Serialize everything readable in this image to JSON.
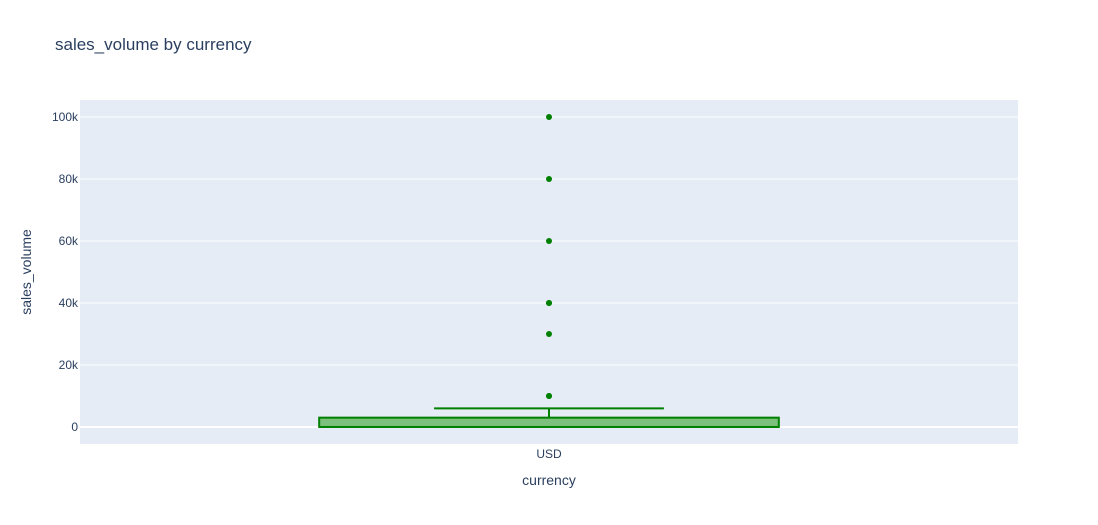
{
  "chart_data": {
    "type": "box",
    "title": "sales_volume by currency",
    "xlabel": "currency",
    "ylabel": "sales_volume",
    "categories": [
      "USD"
    ],
    "ylim": [
      -5500,
      105500
    ],
    "y_ticks": [
      0,
      20000,
      40000,
      60000,
      80000,
      100000
    ],
    "y_tick_labels": [
      "0",
      "20k",
      "40k",
      "60k",
      "80k",
      "100k"
    ],
    "grid": true,
    "legend": "none",
    "series": [
      {
        "category": "USD",
        "lower_fence": 0,
        "q1": 0,
        "median": 0,
        "q3": 3000,
        "upper_fence": 6000,
        "outliers": [
          10000,
          10000,
          30000,
          40000,
          40000,
          60000,
          80000,
          100000
        ]
      }
    ],
    "colors": {
      "box_fill": "#7dbf7d",
      "box_line": "#008000",
      "outlier": "#008000",
      "plot_bg": "#e5ecf6",
      "grid": "#ffffff",
      "text": "#2a3f5f"
    }
  }
}
